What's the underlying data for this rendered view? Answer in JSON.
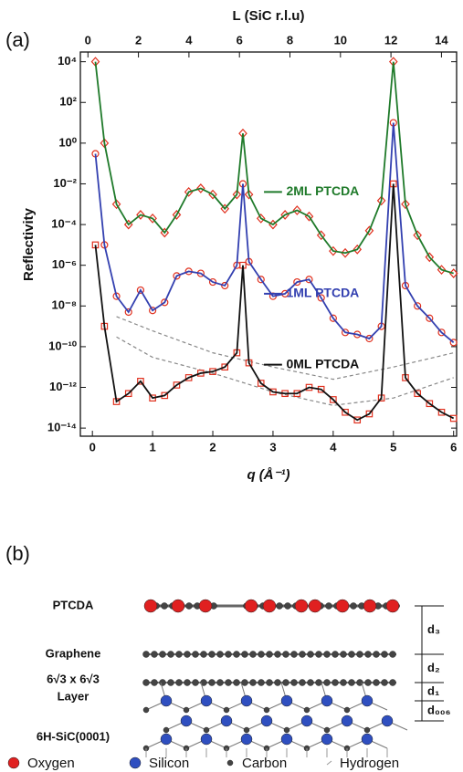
{
  "panel_labels": [
    "(a)",
    "(b)"
  ],
  "chart_data": {
    "type": "line",
    "x_label": "q (Å⁻¹)",
    "x2_label": "L (SiC r.l.u)",
    "y_label": "Reflectivity",
    "log_y": true,
    "xlim": [
      -0.2,
      6.05
    ],
    "xticks": [
      0,
      1,
      2,
      3,
      4,
      5,
      6
    ],
    "x2lim": [
      -0.3,
      14.6
    ],
    "x2ticks": [
      0,
      2,
      4,
      6,
      8,
      10,
      12,
      14
    ],
    "ylim": [
      4e-15,
      30000.0
    ],
    "yticks": [
      {
        "value": 10000.0,
        "label": "10⁴"
      },
      {
        "value": 100.0,
        "label": "10²"
      },
      {
        "value": 1,
        "label": "10⁰"
      },
      {
        "value": 0.01,
        "label": "10⁻²"
      },
      {
        "value": 0.0001,
        "label": "10⁻⁴"
      },
      {
        "value": 1e-06,
        "label": "10⁻⁶"
      },
      {
        "value": 1e-08,
        "label": "10⁻⁸"
      },
      {
        "value": 1e-10,
        "label": "10⁻¹⁰"
      },
      {
        "value": 1e-12,
        "label": "10⁻¹²"
      },
      {
        "value": 1e-14,
        "label": "10⁻¹⁴"
      }
    ],
    "marker_color": "#e0301e",
    "x": [
      0.05,
      0.2,
      0.4,
      0.6,
      0.8,
      1.0,
      1.2,
      1.4,
      1.6,
      1.8,
      2.0,
      2.2,
      2.4,
      2.5,
      2.6,
      2.8,
      3.0,
      3.2,
      3.4,
      3.6,
      3.8,
      4.0,
      4.2,
      4.4,
      4.6,
      4.8,
      5.0,
      5.2,
      5.4,
      5.6,
      5.8,
      6.0
    ],
    "series": [
      {
        "name": "2ML PTCDA",
        "color": "#1f7a2a",
        "marker": "diamond",
        "values": [
          10000.0,
          1,
          0.001,
          0.0001,
          0.0003,
          0.0002,
          4e-05,
          0.0003,
          0.004,
          0.006,
          0.003,
          0.0006,
          0.003,
          3,
          0.003,
          0.0002,
          0.0001,
          0.0003,
          0.0005,
          0.00025,
          3e-05,
          5e-06,
          4e-06,
          6e-06,
          5e-05,
          0.0015,
          10000.0,
          0.001,
          3e-05,
          2.5e-06,
          6e-07,
          4e-07
        ]
      },
      {
        "name": "1ML PTCDA",
        "color": "#3340b0",
        "marker": "circle",
        "values": [
          0.3,
          1e-05,
          3e-08,
          5e-09,
          6e-08,
          6e-09,
          1.5e-08,
          3e-07,
          5e-07,
          4e-07,
          1.5e-07,
          1e-07,
          1e-06,
          0.01,
          1.5e-06,
          2e-07,
          3e-08,
          4e-08,
          1.5e-07,
          2e-07,
          2.5e-08,
          2.5e-09,
          5e-10,
          4e-10,
          2.5e-10,
          1e-09,
          10,
          1e-07,
          1e-08,
          2.5e-09,
          5e-10,
          1.6e-10
        ]
      },
      {
        "name": "0ML PTCDA",
        "color": "#111111",
        "marker": "square",
        "values": [
          1e-05,
          1e-09,
          2e-13,
          5e-13,
          2e-12,
          3e-13,
          4e-13,
          1.3e-12,
          3e-12,
          5e-12,
          6e-12,
          1e-11,
          5e-11,
          1e-06,
          1.6e-11,
          1.6e-12,
          6e-13,
          5e-13,
          5e-13,
          1e-12,
          8e-13,
          2.5e-13,
          6e-14,
          2.5e-14,
          5e-14,
          3e-13,
          0.01,
          3e-12,
          5e-13,
          1.6e-13,
          6e-14,
          3e-14
        ]
      }
    ],
    "reference_curves": [
      {
        "color": "#888888",
        "x": [
          0.4,
          1.0,
          2.0,
          3.0,
          4.0,
          5.0,
          6.0
        ],
        "values": [
          3e-10,
          3e-11,
          5e-12,
          6e-13,
          1.3e-13,
          3e-13,
          3e-12
        ]
      },
      {
        "color": "#888888",
        "x": [
          0.4,
          1.0,
          2.0,
          3.0,
          4.0,
          5.0,
          6.0
        ],
        "values": [
          3e-09,
          6e-10,
          5e-11,
          1e-11,
          2.5e-12,
          1e-11,
          5e-11
        ]
      }
    ]
  },
  "diagram": {
    "layers": [
      {
        "label": [
          "PTCDA"
        ]
      },
      {
        "label": [
          "Graphene"
        ]
      },
      {
        "label": [
          "6√3 x 6√3",
          "Layer"
        ]
      },
      {
        "label": [
          "6H-SiC(0001)"
        ]
      }
    ],
    "distances": [
      "d₃",
      "d₂",
      "d₁",
      "d₀₀₆"
    ],
    "legend": [
      {
        "label": "Oxygen",
        "color": "#e02020"
      },
      {
        "label": "Silicon",
        "color": "#2f4fc0"
      },
      {
        "label": "Carbon",
        "color": "#444444"
      },
      {
        "label": "Hydrogen",
        "color": "#999999"
      }
    ]
  }
}
